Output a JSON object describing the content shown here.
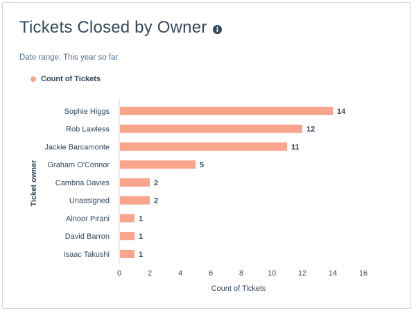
{
  "header": {
    "title": "Tickets Closed by Owner",
    "info_icon": "info-circle-icon",
    "date_range": "Date range: This year so far"
  },
  "colors": {
    "bar": "#f8a58c",
    "text": "#33475b",
    "axis": "#cbd6e2"
  },
  "chart_data": {
    "type": "bar",
    "orientation": "horizontal",
    "title": "Tickets Closed by Owner",
    "subtitle": "Date range: This year so far",
    "xlabel": "Count of Tickets",
    "ylabel": "Ticket owner",
    "xlim": [
      0,
      16
    ],
    "xticks": [
      "0",
      "2",
      "4",
      "6",
      "8",
      "10",
      "12",
      "14",
      "16"
    ],
    "legend": {
      "position": "top-left",
      "entries": [
        "Count of Tickets"
      ]
    },
    "grid": false,
    "categories": [
      "Sophie Higgs",
      "Rob Lawless",
      "Jackie Barcamonte",
      "Graham O'Connor",
      "Cambria Davies",
      "Unassigned",
      "Alnoor Pirani",
      "David Barron",
      "Isaac Takushi"
    ],
    "series": [
      {
        "name": "Count of Tickets",
        "values": [
          14,
          12,
          11,
          5,
          2,
          2,
          1,
          1,
          1
        ]
      }
    ]
  }
}
